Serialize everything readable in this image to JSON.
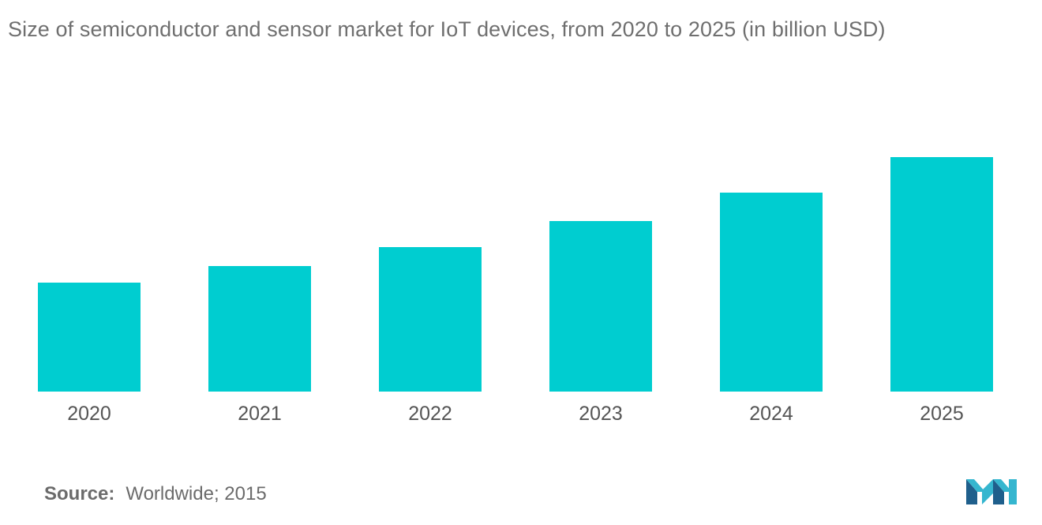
{
  "chart_data": {
    "type": "bar",
    "title": "Size of semiconductor and sensor market for IoT devices, from  2020 to 2025 (in billion USD)",
    "categories": [
      "2020",
      "2021",
      "2022",
      "2023",
      "2024",
      "2025"
    ],
    "values": [
      46,
      53,
      61,
      72,
      84,
      99
    ],
    "xlabel": "",
    "ylabel": "",
    "ylim": [
      0,
      120
    ],
    "grid": false,
    "legend": "none",
    "bar_color": "#00cdd0"
  },
  "source": {
    "label": "Source:",
    "text": "Worldwide; 2015"
  },
  "logo": {
    "icon": "mordor-intelligence-logo-icon",
    "colors": [
      "#1f5f8c",
      "#35b6cf"
    ]
  }
}
